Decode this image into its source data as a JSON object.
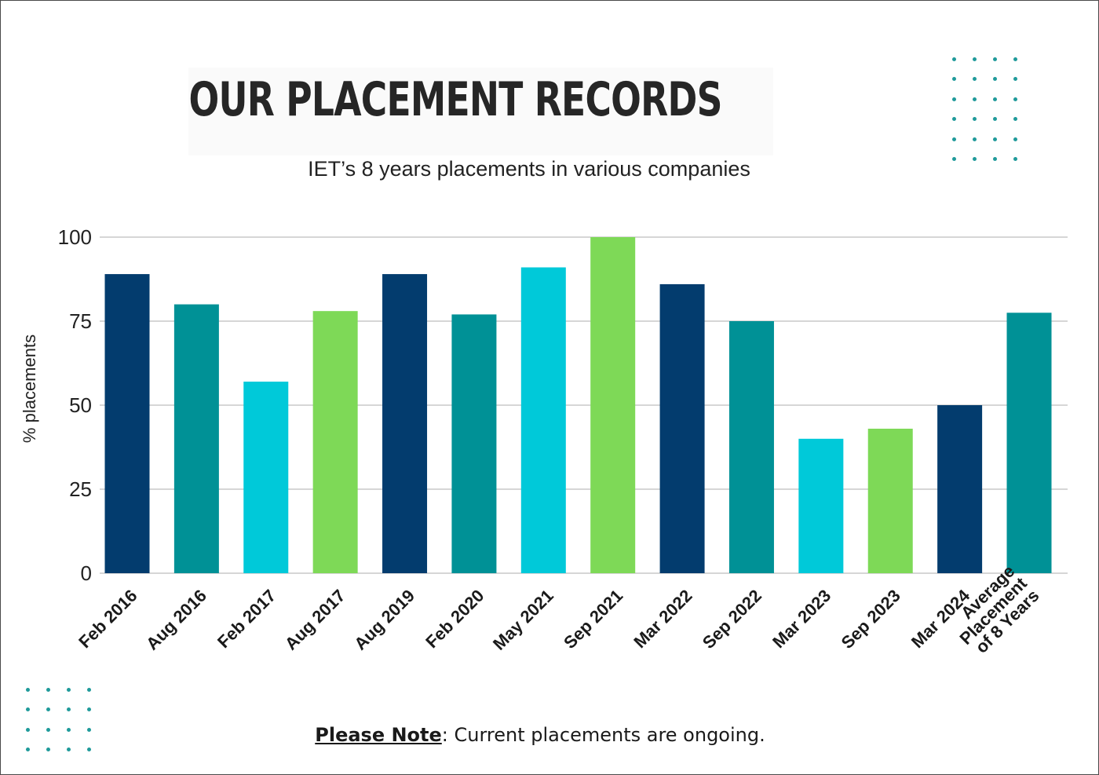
{
  "title": "OUR PLACEMENT RECORDS",
  "subtitle": "IET’s 8 years placements in various companies",
  "note": {
    "label": "Please Note",
    "text": ": Current placements are ongoing."
  },
  "colors": {
    "navy": "#033c6e",
    "teal": "#009196",
    "cyan": "#00c9d9",
    "green": "#7ed957",
    "grid": "#c8c8c8",
    "dots": "#1f9a9a"
  },
  "chart_data": {
    "type": "bar",
    "title": "",
    "xlabel": "",
    "ylabel": "% placements",
    "ylim": [
      0,
      100
    ],
    "yticks": [
      0,
      25,
      50,
      75,
      100
    ],
    "grid": true,
    "categories": [
      "Feb 2016",
      "Aug 2016",
      "Feb 2017",
      "Aug 2017",
      "Aug 2019",
      "Feb 2020",
      "May 2021",
      "Sep 2021",
      "Mar 2022",
      "Sep 2022",
      "Mar 2023",
      "Sep 2023",
      "Mar 2024",
      "Average Placement of 8 Years"
    ],
    "category_lines": [
      [
        "Feb 2016"
      ],
      [
        "Aug 2016"
      ],
      [
        "Feb 2017"
      ],
      [
        "Aug 2017"
      ],
      [
        "Aug 2019"
      ],
      [
        "Feb 2020"
      ],
      [
        "May 2021"
      ],
      [
        "Sep 2021"
      ],
      [
        "Mar 2022"
      ],
      [
        "Sep 2022"
      ],
      [
        "Mar 2023"
      ],
      [
        "Sep 2023"
      ],
      [
        "Mar 2024"
      ],
      [
        "Average",
        "Placement",
        "of 8 Years"
      ]
    ],
    "values": [
      89,
      80,
      57,
      78,
      89,
      77,
      91,
      100,
      86,
      75,
      40,
      43,
      50,
      77.5
    ],
    "bar_colors": [
      "navy",
      "teal",
      "cyan",
      "green",
      "navy",
      "teal",
      "cyan",
      "green",
      "navy",
      "teal",
      "cyan",
      "green",
      "navy",
      "teal"
    ]
  }
}
